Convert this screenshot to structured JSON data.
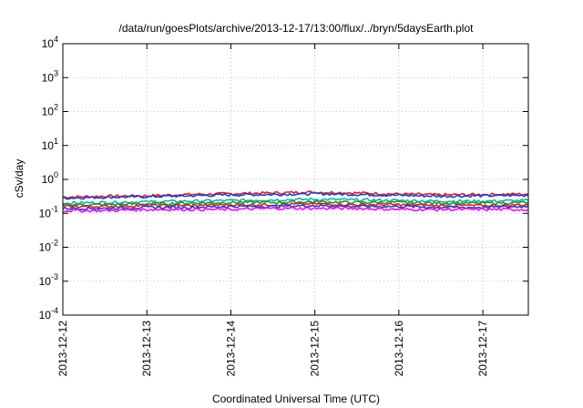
{
  "chart_data": {
    "type": "line",
    "title": "/data/run/goesPlots/archive/2013-12-17/13:00/flux/../bryn/5daysEarth.plot",
    "xlabel": "Coordinated Universal Time (UTC)",
    "ylabel": "cSv/day",
    "yscale": "log",
    "ylim": [
      0.0001,
      10000
    ],
    "y_ticks": [
      {
        "exp": "4",
        "value": 10000
      },
      {
        "exp": "3",
        "value": 1000
      },
      {
        "exp": "2",
        "value": 100
      },
      {
        "exp": "1",
        "value": 10
      },
      {
        "exp": "0",
        "value": 1
      },
      {
        "exp": "-1",
        "value": 0.1
      },
      {
        "exp": "-2",
        "value": 0.01
      },
      {
        "exp": "-3",
        "value": 0.001
      },
      {
        "exp": "-4",
        "value": 0.0001
      }
    ],
    "y_tick_base": "10",
    "xlim": [
      "2013-12-12",
      "2013-12-17 13:00"
    ],
    "x_ticks": [
      "2013-12-12",
      "2013-12-13",
      "2013-12-14",
      "2013-12-15",
      "2013-12-16",
      "2013-12-17"
    ],
    "grid": true,
    "x": [
      "2013-12-12",
      "2013-12-12 12:00",
      "2013-12-13",
      "2013-12-13 12:00",
      "2013-12-14",
      "2013-12-14 12:00",
      "2013-12-15",
      "2013-12-15 12:00",
      "2013-12-16",
      "2013-12-16 12:00",
      "2013-12-17",
      "2013-12-17 13:00"
    ],
    "series": [
      {
        "color": "#e41a1c",
        "values": [
          0.3,
          0.32,
          0.33,
          0.36,
          0.38,
          0.4,
          0.42,
          0.4,
          0.37,
          0.35,
          0.36,
          0.37
        ]
      },
      {
        "color": "#1f3fd0",
        "values": [
          0.28,
          0.3,
          0.31,
          0.33,
          0.35,
          0.36,
          0.38,
          0.36,
          0.34,
          0.32,
          0.33,
          0.34
        ]
      },
      {
        "color": "#00b8b8",
        "values": [
          0.2,
          0.21,
          0.22,
          0.23,
          0.24,
          0.25,
          0.26,
          0.25,
          0.24,
          0.23,
          0.23,
          0.24
        ]
      },
      {
        "color": "#17a017",
        "values": [
          0.18,
          0.18,
          0.19,
          0.2,
          0.21,
          0.21,
          0.22,
          0.21,
          0.21,
          0.2,
          0.2,
          0.21
        ]
      },
      {
        "color": "#e41a1c",
        "values": [
          0.16,
          0.16,
          0.17,
          0.17,
          0.18,
          0.18,
          0.19,
          0.18,
          0.18,
          0.17,
          0.17,
          0.18
        ]
      },
      {
        "color": "#1f3fd0",
        "values": [
          0.14,
          0.14,
          0.15,
          0.15,
          0.16,
          0.16,
          0.17,
          0.16,
          0.16,
          0.15,
          0.15,
          0.16
        ]
      },
      {
        "color": "#ff00ff",
        "values": [
          0.12,
          0.12,
          0.13,
          0.13,
          0.13,
          0.14,
          0.14,
          0.14,
          0.13,
          0.13,
          0.13,
          0.13
        ]
      }
    ]
  }
}
